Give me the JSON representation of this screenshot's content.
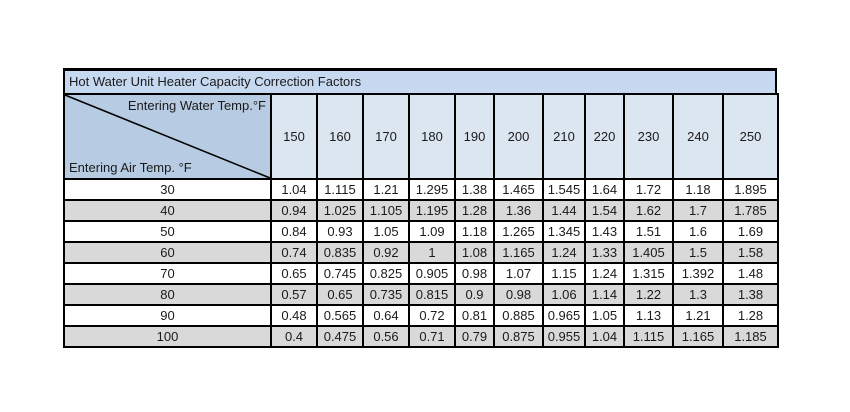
{
  "chart_data": {
    "type": "table",
    "title": "Hot Water Unit Heater Capacity Correction Factors",
    "corner_labels": {
      "top_right": "Entering Water Temp.°F",
      "bottom_left": "Entering Air Temp. °F"
    },
    "column_headers": [
      "150",
      "160",
      "170",
      "180",
      "190",
      "200",
      "210",
      "220",
      "230",
      "240",
      "250"
    ],
    "rows": [
      {
        "air_temp": "30",
        "values": [
          "1.04",
          "1.115",
          "1.21",
          "1.295",
          "1.38",
          "1.465",
          "1.545",
          "1.64",
          "1.72",
          "1.18",
          "1.895"
        ]
      },
      {
        "air_temp": "40",
        "values": [
          "0.94",
          "1.025",
          "1.105",
          "1.195",
          "1.28",
          "1.36",
          "1.44",
          "1.54",
          "1.62",
          "1.7",
          "1.785"
        ]
      },
      {
        "air_temp": "50",
        "values": [
          "0.84",
          "0.93",
          "1.05",
          "1.09",
          "1.18",
          "1.265",
          "1.345",
          "1.43",
          "1.51",
          "1.6",
          "1.69"
        ]
      },
      {
        "air_temp": "60",
        "values": [
          "0.74",
          "0.835",
          "0.92",
          "1",
          "1.08",
          "1.165",
          "1.24",
          "1.33",
          "1.405",
          "1.5",
          "1.58"
        ]
      },
      {
        "air_temp": "70",
        "values": [
          "0.65",
          "0.745",
          "0.825",
          "0.905",
          "0.98",
          "1.07",
          "1.15",
          "1.24",
          "1.315",
          "1.392",
          "1.48"
        ]
      },
      {
        "air_temp": "80",
        "values": [
          "0.57",
          "0.65",
          "0.735",
          "0.815",
          "0.9",
          "0.98",
          "1.06",
          "1.14",
          "1.22",
          "1.3",
          "1.38"
        ]
      },
      {
        "air_temp": "90",
        "values": [
          "0.48",
          "0.565",
          "0.64",
          "0.72",
          "0.81",
          "0.885",
          "0.965",
          "1.05",
          "1.13",
          "1.21",
          "1.28"
        ]
      },
      {
        "air_temp": "100",
        "values": [
          "0.4",
          "0.475",
          "0.56",
          "0.71",
          "0.79",
          "0.875",
          "0.955",
          "1.04",
          "1.115",
          "1.165",
          "1.185"
        ]
      }
    ]
  },
  "colors": {
    "title_background": "#c7d9f0",
    "corner_background": "#b7cce3",
    "header_background": "#dce6f1",
    "row_background": "#ffffff",
    "row_alternate_background": "#d9d9d9",
    "border": "#000000",
    "text": "#1a1a1a"
  }
}
